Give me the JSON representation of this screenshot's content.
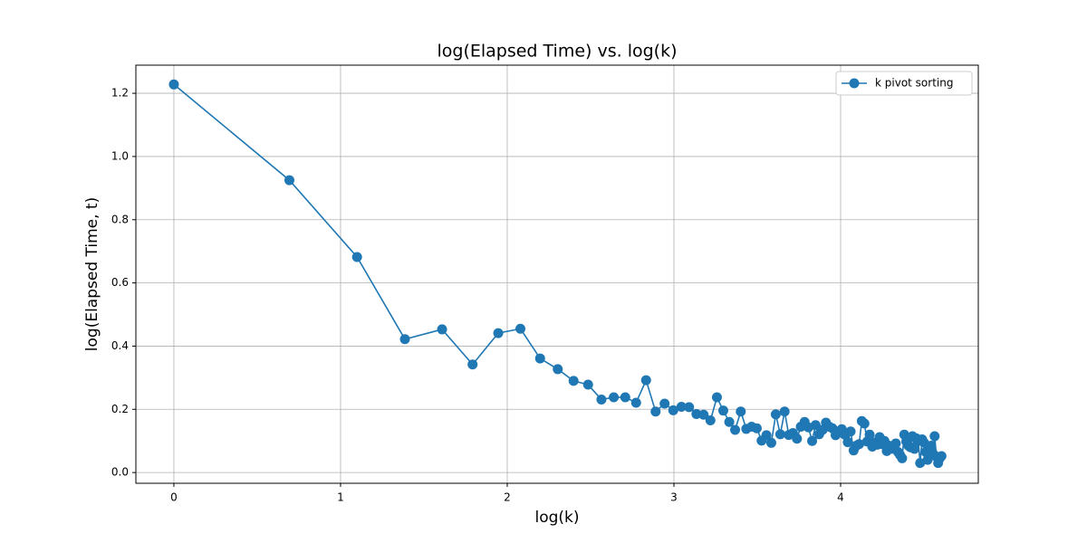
{
  "chart_data": {
    "type": "line",
    "title": "log(Elapsed Time) vs. log(k)",
    "x_label": "log(k)",
    "y_label": "log(Elapsed Time, t)",
    "x": [
      0,
      0.693,
      1.099,
      1.386,
      1.609,
      1.792,
      1.946,
      2.079,
      2.197,
      2.303,
      2.398,
      2.485,
      2.565,
      2.639,
      2.708,
      2.773,
      2.833,
      2.89,
      2.944,
      2.996,
      3.045,
      3.091,
      3.135,
      3.178,
      3.219,
      3.258,
      3.296,
      3.332,
      3.367,
      3.401,
      3.434,
      3.466,
      3.497,
      3.526,
      3.555,
      3.584,
      3.611,
      3.638,
      3.664,
      3.689,
      3.714,
      3.738,
      3.761,
      3.784,
      3.807,
      3.829,
      3.85,
      3.871,
      3.892,
      3.912,
      3.932,
      3.951,
      3.97,
      3.989,
      4.007,
      4.025,
      4.043,
      4.06,
      4.078,
      4.094,
      4.111,
      4.127,
      4.143,
      4.159,
      4.174,
      4.19,
      4.205,
      4.22,
      4.234,
      4.248,
      4.263,
      4.277,
      4.29,
      4.304,
      4.317,
      4.331,
      4.344,
      4.357,
      4.369,
      4.382,
      4.394,
      4.407,
      4.419,
      4.431,
      4.443,
      4.454,
      4.466,
      4.477,
      4.489,
      4.5,
      4.511,
      4.522,
      4.533,
      4.543,
      4.554,
      4.564,
      4.575,
      4.585,
      4.595,
      4.605
    ],
    "series": [
      {
        "name": "k pivot sorting",
        "color": "#1f77b4",
        "values": [
          1.228,
          0.925,
          0.682,
          0.422,
          0.453,
          0.342,
          0.441,
          0.455,
          0.361,
          0.327,
          0.29,
          0.278,
          0.231,
          0.238,
          0.238,
          0.221,
          0.292,
          0.193,
          0.218,
          0.197,
          0.208,
          0.207,
          0.185,
          0.183,
          0.165,
          0.238,
          0.196,
          0.16,
          0.135,
          0.193,
          0.138,
          0.145,
          0.14,
          0.101,
          0.118,
          0.094,
          0.184,
          0.121,
          0.193,
          0.119,
          0.125,
          0.107,
          0.145,
          0.16,
          0.143,
          0.1,
          0.15,
          0.121,
          0.135,
          0.158,
          0.145,
          0.14,
          0.118,
          0.13,
          0.137,
          0.12,
          0.096,
          0.13,
          0.07,
          0.085,
          0.09,
          0.163,
          0.155,
          0.098,
          0.12,
          0.082,
          0.095,
          0.088,
          0.112,
          0.09,
          0.1,
          0.068,
          0.085,
          0.075,
          0.08,
          0.092,
          0.065,
          0.055,
          0.045,
          0.12,
          0.098,
          0.085,
          0.08,
          0.115,
          0.075,
          0.108,
          0.1,
          0.03,
          0.105,
          0.095,
          0.065,
          0.04,
          0.078,
          0.085,
          0.06,
          0.115,
          0.05,
          0.03,
          0.045,
          0.052
        ]
      }
    ],
    "xlim": [
      -0.228,
      4.826
    ],
    "ylim": [
      -0.034,
      1.289
    ],
    "xticks": [
      0,
      1,
      2,
      3,
      4
    ],
    "yticks": [
      {
        "value": 0,
        "label": "0.0"
      },
      {
        "value": 0.2,
        "label": "0.2"
      },
      {
        "value": 0.4,
        "label": "0.4"
      },
      {
        "value": 0.6,
        "label": "0.6"
      },
      {
        "value": 0.8,
        "label": "0.8"
      },
      {
        "value": 1,
        "label": "1.0"
      },
      {
        "value": 1.2,
        "label": "1.2"
      }
    ],
    "grid": true,
    "legend": "upper right"
  }
}
